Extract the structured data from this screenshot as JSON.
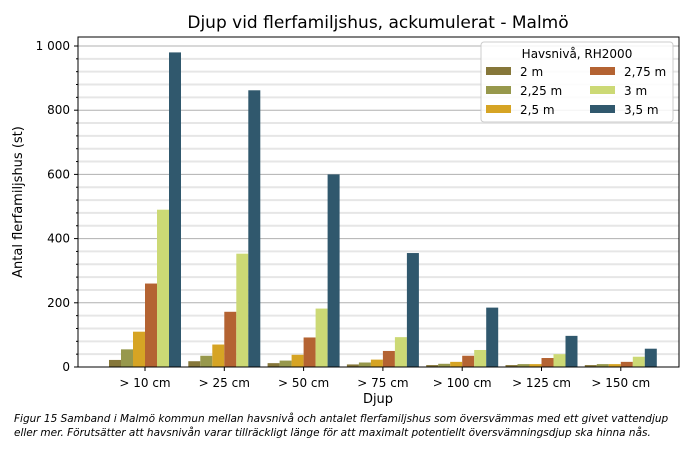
{
  "chart_data": {
    "type": "bar",
    "title": "Djup vid flerfamiljshus, ackumulerat - Malmö",
    "xlabel": "Djup",
    "ylabel": "Antal flerfamiljshus (st)",
    "ylim": [
      0,
      1028
    ],
    "yticks": [
      0,
      200,
      400,
      600,
      800,
      1000
    ],
    "ytick_labels": [
      "0",
      "200",
      "400",
      "600",
      "800",
      "1 000"
    ],
    "grid": true,
    "legend_title": "Havsnivå, RH2000",
    "legend_placement": "top-right",
    "categories": [
      "> 10 cm",
      "> 25 cm",
      "> 50 cm",
      "> 75 cm",
      "> 100 cm",
      "> 125 cm",
      "> 150 cm"
    ],
    "series": [
      {
        "name": "2 m",
        "color": "#86773a",
        "values": [
          22,
          18,
          12,
          8,
          6,
          6,
          6
        ]
      },
      {
        "name": "2,25 m",
        "color": "#97984c",
        "values": [
          55,
          35,
          20,
          14,
          10,
          9,
          9
        ]
      },
      {
        "name": "2,5 m",
        "color": "#d6a424",
        "values": [
          110,
          70,
          38,
          23,
          16,
          9,
          9
        ]
      },
      {
        "name": "2,75 m",
        "color": "#b46332",
        "values": [
          260,
          172,
          92,
          50,
          35,
          28,
          16
        ]
      },
      {
        "name": "3 m",
        "color": "#ccd975",
        "values": [
          490,
          353,
          182,
          93,
          53,
          40,
          32
        ]
      },
      {
        "name": "3,5 m",
        "color": "#30586d",
        "values": [
          980,
          862,
          600,
          355,
          185,
          97,
          57
        ]
      }
    ]
  },
  "caption": "Figur 15 Samband i Malmö kommun mellan havsnivå och antalet flerfamiljshus som översvämmas med ett givet vattendjup eller mer. Förutsätter att havsnivån varar tillräckligt länge för att maximalt potentiellt översvämningsdjup ska hinna nås."
}
